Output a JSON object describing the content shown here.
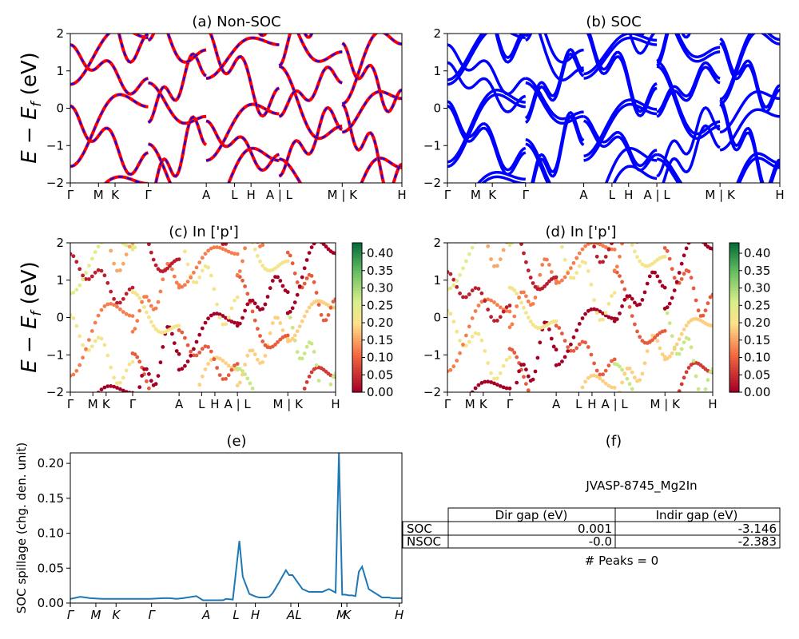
{
  "chart_data": [
    {
      "id": "a",
      "type": "line",
      "title": "(a) Non-SOC",
      "ylabel": "E − E_f (eV)",
      "ylim": [
        -2,
        2
      ],
      "yticks": [
        -2,
        -1,
        0,
        1,
        2
      ],
      "xticks": [
        "Γ",
        "M",
        "K",
        "Γ",
        "A",
        "L",
        "H",
        "A | L",
        "M | K",
        "H"
      ],
      "colors": {
        "line": "#ff0000",
        "dash": "#0000ff"
      }
    },
    {
      "id": "b",
      "type": "line",
      "title": "(b) SOC",
      "ylim": [
        -2,
        2
      ],
      "yticks": [
        -2,
        -1,
        0,
        1,
        2
      ],
      "xticks": [
        "Γ",
        "M",
        "K",
        "Γ",
        "A",
        "L",
        "H",
        "A | L",
        "M | K",
        "H"
      ],
      "colors": {
        "line": "#0000ff"
      }
    },
    {
      "id": "c",
      "type": "scatter",
      "title": "(c)  In ['p']",
      "ylabel": "E − E_f (eV)",
      "ylim": [
        -2,
        2
      ],
      "yticks": [
        -2,
        -1,
        0,
        1,
        2
      ],
      "xticks": [
        "Γ",
        "M",
        "K",
        "Γ",
        "A",
        "L",
        "H",
        "A | L",
        "M | K",
        "H"
      ],
      "colorbar": {
        "ticks": [
          "0.00",
          "0.05",
          "0.10",
          "0.15",
          "0.20",
          "0.25",
          "0.30",
          "0.35",
          "0.40"
        ],
        "range": [
          0,
          0.43
        ],
        "colormap": "RdYlGn"
      }
    },
    {
      "id": "d",
      "type": "scatter",
      "title": "(d) In ['p']",
      "ylim": [
        -2,
        2
      ],
      "yticks": [
        -2,
        -1,
        0,
        1,
        2
      ],
      "xticks": [
        "Γ",
        "M",
        "K",
        "Γ",
        "A",
        "L",
        "H",
        "A | L",
        "M | K",
        "H"
      ],
      "colorbar": {
        "ticks": [
          "0.00",
          "0.05",
          "0.10",
          "0.15",
          "0.20",
          "0.25",
          "0.30",
          "0.35",
          "0.40"
        ],
        "range": [
          0,
          0.43
        ],
        "colormap": "RdYlGn"
      }
    },
    {
      "id": "e",
      "type": "line",
      "title": "(e)",
      "ylabel": "SOC spillage (chg. den. unit)",
      "ylim": [
        0,
        0.215
      ],
      "yticks": [
        "0.00",
        "0.05",
        "0.10",
        "0.15",
        "0.20"
      ],
      "xticks": [
        "Γ",
        "M",
        "K",
        "Γ",
        "A",
        "L",
        "H",
        "A",
        "L",
        "M",
        "K",
        "H"
      ],
      "x": [
        0,
        3,
        6,
        10,
        20,
        24,
        28,
        30,
        32,
        34,
        38,
        40,
        42,
        44,
        46,
        47,
        49,
        51,
        52,
        54,
        56,
        57,
        58,
        59,
        60,
        61,
        62,
        63,
        65,
        66,
        67,
        70,
        72,
        74,
        76,
        78,
        80,
        81,
        82,
        83,
        84,
        85,
        86,
        87,
        88,
        90,
        94,
        96,
        97,
        98,
        100
      ],
      "values": [
        0.006,
        0.009,
        0.007,
        0.006,
        0.006,
        0.006,
        0.007,
        0.007,
        0.006,
        0.007,
        0.01,
        0.004,
        0.004,
        0.004,
        0.004,
        0.006,
        0.005,
        0.089,
        0.038,
        0.013,
        0.009,
        0.008,
        0.008,
        0.008,
        0.009,
        0.014,
        0.022,
        0.03,
        0.047,
        0.04,
        0.04,
        0.02,
        0.016,
        0.016,
        0.016,
        0.02,
        0.015,
        0.215,
        0.012,
        0.012,
        0.011,
        0.011,
        0.01,
        0.045,
        0.052,
        0.02,
        0.008,
        0.008,
        0.007,
        0.007,
        0.007
      ],
      "color": "#1f77b4"
    }
  ],
  "panel_f": {
    "title": "(f)",
    "material": "JVASP-8745_Mg2In",
    "headers": [
      "",
      "Dir gap (eV)",
      "Indir gap (eV)"
    ],
    "rows": [
      [
        "SOC",
        "0.001",
        "-3.146"
      ],
      [
        "NSOC",
        "-0.0",
        "-2.383"
      ]
    ],
    "peaks": "# Peaks = 0"
  }
}
